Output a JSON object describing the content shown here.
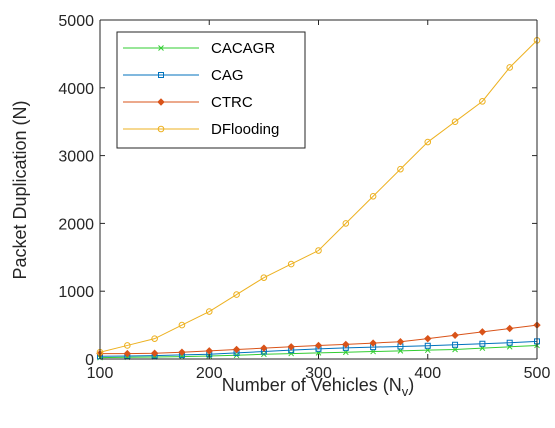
{
  "chart_data": {
    "type": "line",
    "xlabel": "Number of Vehicles (N",
    "xlabel_sub": "v",
    "xlabel_close": ")",
    "ylabel": "Packet Duplication (N)",
    "xlim": [
      100,
      500
    ],
    "ylim": [
      0,
      5000
    ],
    "x_ticks": [
      100,
      200,
      300,
      400,
      500
    ],
    "y_ticks": [
      0,
      1000,
      2000,
      3000,
      4000,
      5000
    ],
    "x": [
      100,
      125,
      150,
      175,
      200,
      225,
      250,
      275,
      300,
      325,
      350,
      375,
      400,
      425,
      450,
      475,
      500
    ],
    "legend_position": "top-left",
    "grid": false,
    "series": [
      {
        "name": "CACAGR",
        "color": "#32cd32",
        "marker": "x",
        "values": [
          20,
          25,
          30,
          35,
          45,
          55,
          70,
          80,
          90,
          100,
          110,
          120,
          130,
          140,
          160,
          180,
          200
        ]
      },
      {
        "name": "CAG",
        "color": "#0072bd",
        "marker": "square",
        "values": [
          40,
          45,
          50,
          60,
          70,
          90,
          110,
          130,
          150,
          165,
          175,
          185,
          195,
          210,
          225,
          240,
          260
        ]
      },
      {
        "name": "CTRC",
        "color": "#d95319",
        "marker": "diamond",
        "values": [
          80,
          80,
          85,
          100,
          120,
          140,
          160,
          180,
          200,
          215,
          235,
          255,
          300,
          350,
          400,
          450,
          500
        ]
      },
      {
        "name": "DFlooding",
        "color": "#edb120",
        "marker": "circle",
        "values": [
          100,
          200,
          300,
          500,
          700,
          950,
          1200,
          1400,
          1600,
          2000,
          2400,
          2800,
          3200,
          3500,
          3800,
          4300,
          4700
        ]
      }
    ]
  }
}
